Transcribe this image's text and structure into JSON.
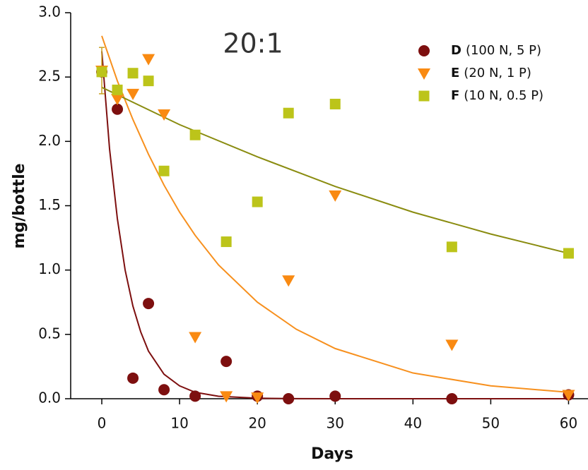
{
  "chart_data": {
    "type": "scatter",
    "annotation": "20:1",
    "x_label": "Days",
    "y_label": "mg/bottle",
    "xlim": [
      -4,
      62.5
    ],
    "ylim": [
      0,
      3
    ],
    "xticks": [
      0,
      10,
      20,
      30,
      40,
      50,
      60
    ],
    "yticks": [
      {
        "value": 0,
        "label": "0.0"
      },
      {
        "value": 0.5,
        "label": "0.5"
      },
      {
        "value": 1,
        "label": "1.0"
      },
      {
        "value": 1.5,
        "label": "1.5"
      },
      {
        "value": 2,
        "label": "2.0"
      },
      {
        "value": 2.5,
        "label": "2.5"
      },
      {
        "value": 3,
        "label": "3.0"
      }
    ],
    "legend_position": "upper right",
    "series": [
      {
        "name": "D",
        "label": "(100 N, 5 P)",
        "color": "#7d0f0f",
        "marker": "circle",
        "x": [
          0,
          2,
          4,
          6,
          8,
          12,
          16,
          20,
          24,
          30,
          45,
          60
        ],
        "values": [
          2.54,
          2.25,
          0.16,
          0.74,
          0.07,
          0.02,
          0.29,
          0.02,
          0.0,
          0.02,
          0.0,
          0.03
        ],
        "fit": {
          "color": "#7d0f0f",
          "x": [
            0,
            1,
            2,
            3,
            4,
            5,
            6,
            8,
            10,
            12,
            15,
            20,
            25,
            30,
            40,
            50,
            60
          ],
          "values": [
            2.7,
            1.94,
            1.4,
            1.0,
            0.72,
            0.52,
            0.37,
            0.19,
            0.1,
            0.05,
            0.019,
            0.004,
            0.001,
            0,
            0,
            0,
            0
          ]
        }
      },
      {
        "name": "E",
        "label": "(20 N, 1 P)",
        "color": "#f98a12",
        "marker": "triangle-down",
        "x": [
          0,
          2,
          4,
          6,
          8,
          12,
          16,
          20,
          24,
          30,
          45,
          60
        ],
        "values": [
          2.55,
          2.33,
          2.37,
          2.64,
          2.21,
          0.48,
          0.02,
          0.01,
          0.92,
          1.58,
          0.42,
          0.03
        ],
        "error_bar": {
          "x": 0,
          "value": 2.55,
          "error": 0.18
        },
        "fit": {
          "color": "#f7901e",
          "x": [
            0,
            2,
            4,
            6,
            8,
            10,
            12,
            15,
            20,
            25,
            30,
            40,
            50,
            60
          ],
          "values": [
            2.82,
            2.47,
            2.17,
            1.9,
            1.66,
            1.45,
            1.27,
            1.04,
            0.75,
            0.54,
            0.39,
            0.2,
            0.1,
            0.05
          ]
        }
      },
      {
        "name": "F",
        "label": "(10 N, 0.5 P)",
        "color": "#bcc41a",
        "marker": "square",
        "x": [
          0,
          2,
          4,
          6,
          8,
          12,
          16,
          20,
          24,
          30,
          45,
          60
        ],
        "values": [
          2.54,
          2.4,
          2.53,
          2.47,
          1.77,
          2.05,
          1.22,
          1.53,
          2.22,
          2.29,
          1.18,
          1.13
        ],
        "fit": {
          "color": "#8a8c10",
          "x": [
            0,
            10,
            20,
            30,
            40,
            50,
            60
          ],
          "values": [
            2.42,
            2.13,
            1.88,
            1.65,
            1.45,
            1.28,
            1.13
          ]
        }
      }
    ]
  }
}
